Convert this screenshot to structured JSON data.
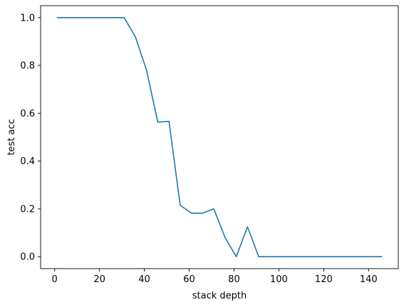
{
  "chart_data": {
    "type": "line",
    "title": "",
    "xlabel": "stack depth",
    "ylabel": "test acc",
    "xlim": [
      -6.25,
      153.25
    ],
    "ylim": [
      -0.05,
      1.05
    ],
    "xticks": [
      0,
      20,
      40,
      60,
      80,
      100,
      120,
      140
    ],
    "yticks": [
      0.0,
      0.2,
      0.4,
      0.6,
      0.8,
      1.0
    ],
    "xtick_labels": [
      "0",
      "20",
      "40",
      "60",
      "80",
      "100",
      "120",
      "140"
    ],
    "ytick_labels": [
      "0.0",
      "0.2",
      "0.4",
      "0.6",
      "0.8",
      "1.0"
    ],
    "grid": false,
    "series": [
      {
        "color": "#1f77b4",
        "x": [
          1,
          6,
          11,
          16,
          21,
          26,
          31,
          36,
          41,
          46,
          51,
          56,
          61,
          66,
          71,
          76,
          81,
          86,
          91,
          96,
          101,
          106,
          111,
          116,
          121,
          126,
          131,
          136,
          141,
          146
        ],
        "y": [
          1.0,
          1.0,
          1.0,
          1.0,
          1.0,
          1.0,
          1.0,
          0.92,
          0.78,
          0.563,
          0.566,
          0.215,
          0.182,
          0.182,
          0.2,
          0.08,
          0.0,
          0.125,
          0.0,
          0.0,
          0.0,
          0.0,
          0.0,
          0.0,
          0.0,
          0.0,
          0.0,
          0.0,
          0.0,
          0.0
        ]
      }
    ]
  }
}
